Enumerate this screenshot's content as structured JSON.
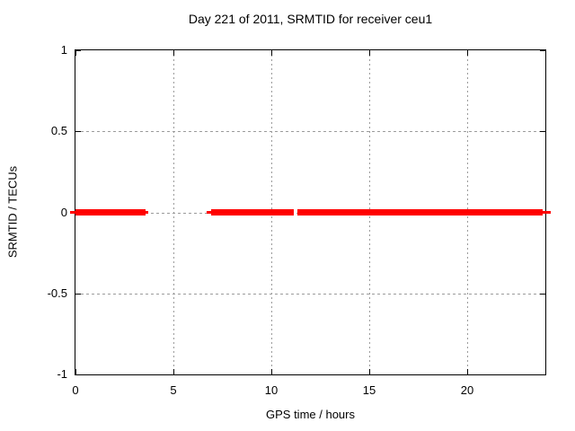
{
  "chart_data": {
    "type": "line",
    "title": "Day 221 of 2011, SRMTID for receiver ceu1",
    "xlabel": "GPS time / hours",
    "ylabel": "SRMTID / TECUs",
    "xlim": [
      0,
      24
    ],
    "ylim": [
      -1,
      1
    ],
    "x_ticks": [
      {
        "value": 0,
        "label": "0"
      },
      {
        "value": 5,
        "label": "5"
      },
      {
        "value": 10,
        "label": "10"
      },
      {
        "value": 15,
        "label": "15"
      },
      {
        "value": 20,
        "label": "20"
      }
    ],
    "y_ticks": [
      {
        "value": -1,
        "label": "-1"
      },
      {
        "value": -0.5,
        "label": "-0.5"
      },
      {
        "value": 0,
        "label": "0"
      },
      {
        "value": 0.5,
        "label": "0.5"
      },
      {
        "value": 1,
        "label": "1"
      }
    ],
    "grid": true,
    "legend": "none",
    "series": [
      {
        "name": "SRMTID",
        "color": "#ff0000",
        "y_value": 0,
        "segments_hours": [
          [
            0,
            3.6
          ],
          [
            6.95,
            11.15
          ],
          [
            11.34,
            23.87
          ]
        ],
        "thin_marks_hours": [
          [
            -0.27,
            0.05
          ],
          [
            3.55,
            3.75
          ],
          [
            6.72,
            6.98
          ],
          [
            23.84,
            24.25
          ]
        ]
      }
    ]
  },
  "colors": {
    "line": "#ff0000",
    "grid": "#9b9b9b",
    "frame": "#000000",
    "background": "#ffffff",
    "text": "#000000"
  }
}
